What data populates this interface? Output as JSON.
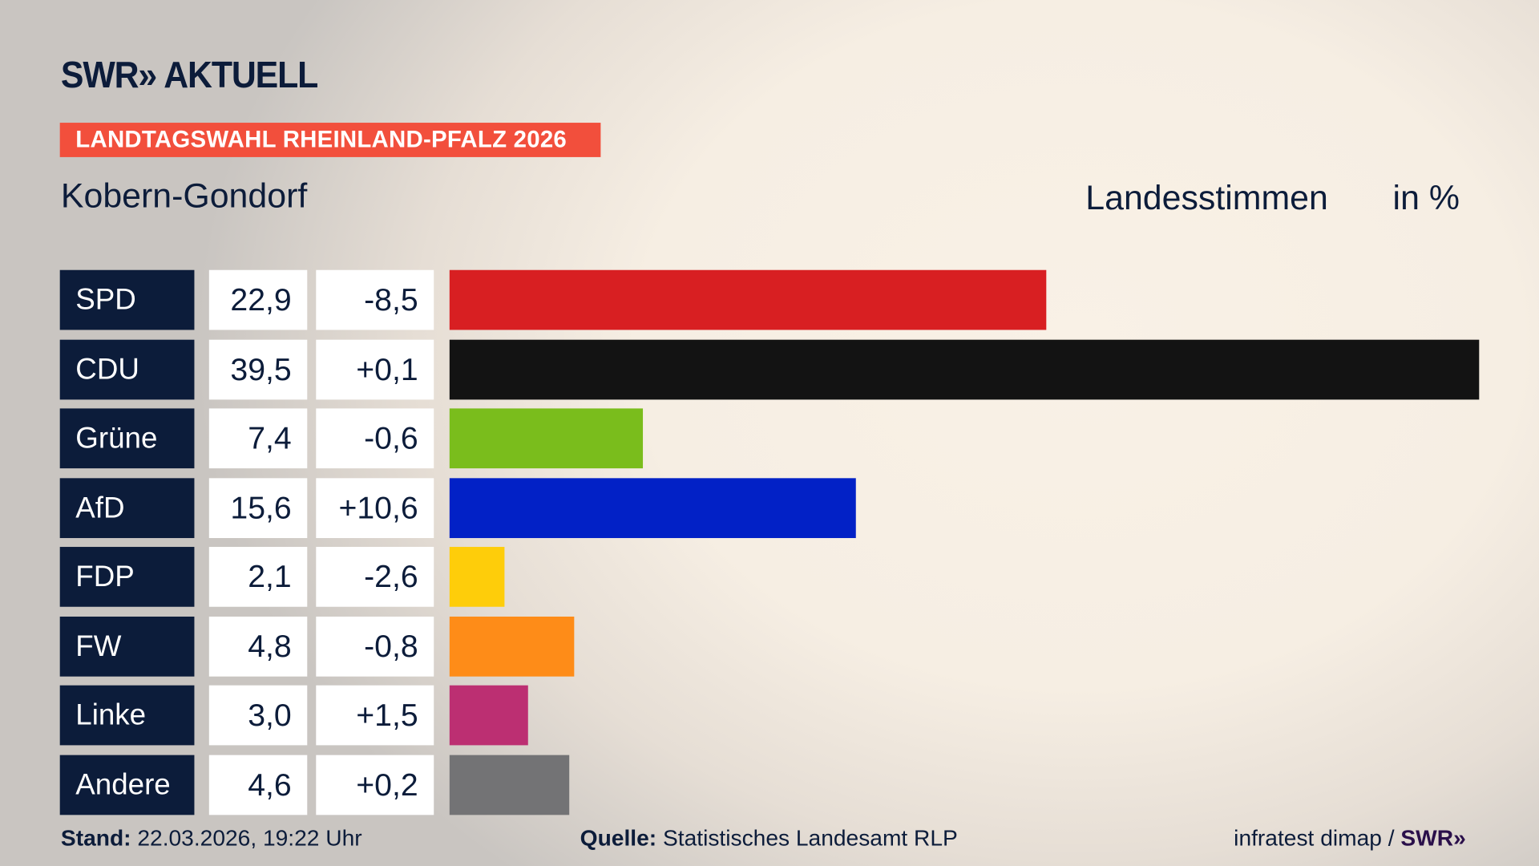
{
  "logo": "SWR» AKTUELL",
  "banner": "LANDTAGSWAHL RHEINLAND-PFALZ 2026",
  "place": "Kobern-Gondorf",
  "header": {
    "measure": "Landesstimmen",
    "unit": "in %"
  },
  "chart_data": {
    "type": "bar",
    "orientation": "horizontal",
    "categories": [
      "SPD",
      "CDU",
      "Grüne",
      "AfD",
      "FDP",
      "FW",
      "Linke",
      "Andere"
    ],
    "values": [
      22.9,
      39.5,
      7.4,
      15.6,
      2.1,
      4.8,
      3.0,
      4.6
    ],
    "value_labels": [
      "22,9",
      "39,5",
      "7,4",
      "15,6",
      "2,1",
      "4,8",
      "3,0",
      "4,6"
    ],
    "changes": [
      -8.5,
      0.1,
      -0.6,
      10.6,
      -2.6,
      -0.8,
      1.5,
      0.2
    ],
    "change_labels": [
      "-8,5",
      "+0,1",
      "-0,6",
      "+10,6",
      "-2,6",
      "-0,8",
      "+1,5",
      "+0,2"
    ],
    "colors": [
      "#d81f22",
      "#131313",
      "#7abd1c",
      "#0221c6",
      "#fecd0a",
      "#fe8c18",
      "#bc2f72",
      "#737375"
    ]
  },
  "footer": {
    "stand_label": "Stand:",
    "stand_value": "22.03.2026, 19:22 Uhr",
    "source_label": "Quelle:",
    "source_value": "Statistisches Landesamt RLP",
    "credit": "infratest dimap /",
    "credit_logo": "SWR»"
  }
}
